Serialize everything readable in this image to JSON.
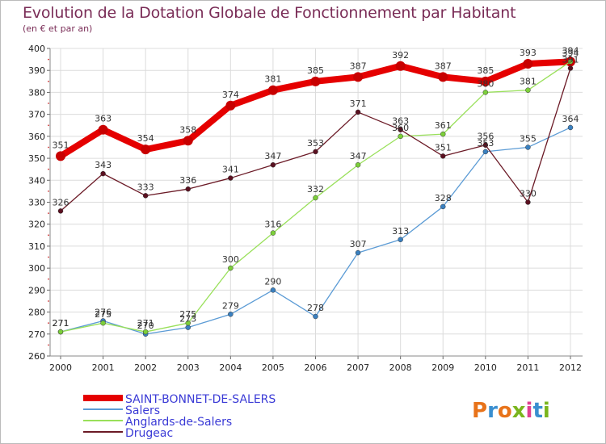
{
  "title": "Evolution de la Dotation Globale de Fonctionnement par Habitant",
  "subtitle": "(en € et par an)",
  "logo": "Proxiti",
  "chart_data": {
    "type": "line",
    "title": "Evolution de la Dotation Globale de Fonctionnement par Habitant",
    "subtitle": "(en € et par an)",
    "xlabel": "",
    "ylabel": "",
    "x": [
      "2000",
      "2001",
      "2002",
      "2003",
      "2004",
      "2005",
      "2006",
      "2007",
      "2008",
      "2009",
      "2010",
      "2011",
      "2012"
    ],
    "ylim": [
      260,
      400
    ],
    "yticks": [
      260,
      270,
      280,
      290,
      300,
      310,
      320,
      330,
      340,
      350,
      360,
      370,
      380,
      390,
      400
    ],
    "grid": true,
    "legend_position": "bottom-left",
    "series": [
      {
        "name": "SAINT-BONNET-DE-SALERS",
        "color": "#e50000",
        "values": [
          351,
          363,
          354,
          358,
          374,
          381,
          385,
          387,
          392,
          387,
          385,
          393,
          394
        ]
      },
      {
        "name": "Salers",
        "color": "#5b9bd5",
        "values": [
          271,
          276,
          270,
          273,
          279,
          290,
          278,
          307,
          313,
          328,
          353,
          355,
          364
        ]
      },
      {
        "name": "Anglards-de-Salers",
        "color": "#99e05a",
        "values": [
          271,
          275,
          271,
          275,
          300,
          316,
          332,
          347,
          360,
          361,
          380,
          381,
          394
        ]
      },
      {
        "name": "Drugeac",
        "color": "#6b1a26",
        "values": [
          326,
          343,
          333,
          336,
          341,
          347,
          353,
          371,
          363,
          351,
          356,
          330,
          391
        ]
      }
    ]
  }
}
